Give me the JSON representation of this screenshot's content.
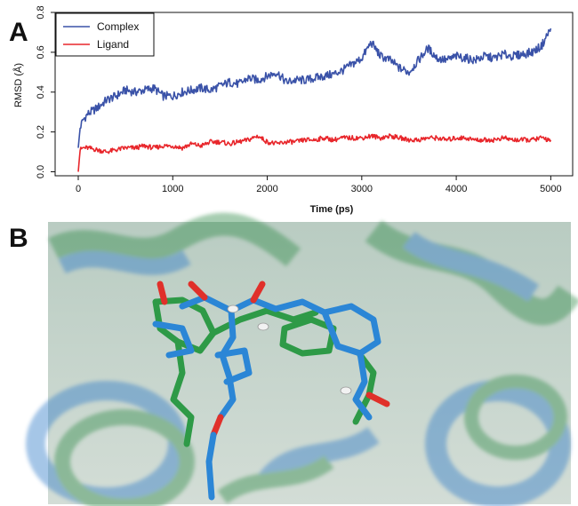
{
  "panels": {
    "a_label": "A",
    "b_label": "B"
  },
  "chart_data": {
    "type": "line",
    "xlabel": "Time (ps)",
    "ylabel": "RMSD (Å)",
    "xlim": [
      0,
      5100
    ],
    "ylim": [
      -0.02,
      0.8
    ],
    "x_ticks": [
      "0",
      "1000",
      "2000",
      "3000",
      "4000",
      "5000"
    ],
    "x_tick_values": [
      0,
      1000,
      2000,
      3000,
      4000,
      5000
    ],
    "y_ticks": [
      "0.0",
      "0.2",
      "0.4",
      "0.6",
      "0.8"
    ],
    "y_tick_values": [
      0.0,
      0.2,
      0.4,
      0.6,
      0.8
    ],
    "grid": false,
    "legend_placement": "top-left",
    "series": [
      {
        "name": "Complex",
        "color": "#3a52a8",
        "x": [
          0,
          20,
          50,
          100,
          200,
          300,
          400,
          500,
          600,
          700,
          800,
          900,
          1000,
          1100,
          1200,
          1300,
          1400,
          1500,
          1600,
          1700,
          1800,
          1900,
          2000,
          2100,
          2200,
          2300,
          2400,
          2500,
          2600,
          2700,
          2800,
          2900,
          3000,
          3100,
          3200,
          3300,
          3400,
          3500,
          3600,
          3700,
          3800,
          3900,
          4000,
          4100,
          4200,
          4300,
          4400,
          4500,
          4600,
          4700,
          4800,
          4900,
          5000
        ],
        "y": [
          0.12,
          0.22,
          0.26,
          0.29,
          0.32,
          0.36,
          0.38,
          0.41,
          0.4,
          0.41,
          0.42,
          0.38,
          0.38,
          0.4,
          0.41,
          0.42,
          0.41,
          0.43,
          0.45,
          0.44,
          0.47,
          0.46,
          0.48,
          0.5,
          0.45,
          0.46,
          0.46,
          0.47,
          0.48,
          0.49,
          0.51,
          0.54,
          0.57,
          0.65,
          0.58,
          0.56,
          0.52,
          0.5,
          0.56,
          0.62,
          0.57,
          0.56,
          0.58,
          0.57,
          0.56,
          0.58,
          0.57,
          0.59,
          0.58,
          0.59,
          0.6,
          0.63,
          0.72
        ]
      },
      {
        "name": "Ligand",
        "color": "#e8262b",
        "x": [
          0,
          20,
          50,
          100,
          200,
          300,
          400,
          500,
          600,
          700,
          800,
          900,
          1000,
          1100,
          1200,
          1300,
          1400,
          1500,
          1600,
          1700,
          1800,
          1900,
          2000,
          2100,
          2200,
          2300,
          2400,
          2500,
          2600,
          2700,
          2800,
          2900,
          3000,
          3100,
          3200,
          3300,
          3400,
          3500,
          3600,
          3700,
          3800,
          3900,
          4000,
          4100,
          4200,
          4300,
          4400,
          4500,
          4600,
          4700,
          4800,
          4900,
          5000
        ],
        "y": [
          0.0,
          0.11,
          0.12,
          0.12,
          0.11,
          0.1,
          0.11,
          0.12,
          0.12,
          0.13,
          0.12,
          0.13,
          0.13,
          0.12,
          0.14,
          0.13,
          0.15,
          0.15,
          0.14,
          0.15,
          0.16,
          0.18,
          0.15,
          0.14,
          0.15,
          0.15,
          0.16,
          0.16,
          0.17,
          0.16,
          0.17,
          0.17,
          0.17,
          0.18,
          0.17,
          0.18,
          0.17,
          0.16,
          0.16,
          0.17,
          0.17,
          0.16,
          0.17,
          0.17,
          0.16,
          0.16,
          0.16,
          0.17,
          0.16,
          0.16,
          0.16,
          0.17,
          0.16
        ]
      }
    ]
  },
  "render": {
    "description_colors": {
      "background_haze": "#c9d6cf",
      "helix_blue": "#2a7fd4",
      "helix_green": "#3b9a4a",
      "stick_blue": "#2b86d6",
      "stick_green": "#2f9a48",
      "oxygen_red": "#e0302a",
      "nitrogen_blue": "#2c3fbf",
      "hydrogen_white": "#f2f2f2"
    }
  }
}
